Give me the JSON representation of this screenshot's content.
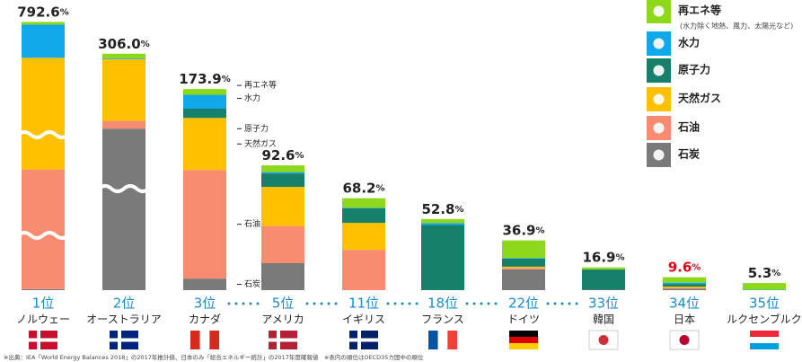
{
  "chart_data": {
    "type": "bar",
    "stacked": true,
    "unit": "%",
    "categories": [
      "ノルウェー",
      "オーストラリア",
      "カナダ",
      "アメリカ",
      "イギリス",
      "フランス",
      "ドイツ",
      "韓国",
      "日本",
      "ルクセンブルク"
    ],
    "ranks": [
      "1位",
      "2位",
      "3位",
      "5位",
      "11位",
      "18位",
      "22位",
      "33位",
      "34位",
      "35位"
    ],
    "totals": [
      792.6,
      306.0,
      173.9,
      92.6,
      68.2,
      52.8,
      36.9,
      16.9,
      9.6,
      5.3
    ],
    "total_labels": [
      "792.6",
      "306.0",
      "173.9",
      "92.6",
      "68.2",
      "52.8",
      "36.9",
      "16.9",
      "9.6",
      "5.3"
    ],
    "label_colors": [
      "#222222",
      "#222222",
      "#222222",
      "#222222",
      "#222222",
      "#222222",
      "#222222",
      "#222222",
      "#e60012",
      "#222222"
    ],
    "rank_colors": [
      "#1a8ccd",
      "#1a8ccd",
      "#1a8ccd",
      "#1a8ccd",
      "#1a8ccd",
      "#1a8ccd",
      "#1a8ccd",
      "#1a8ccd",
      "#e60012",
      "#1a8ccd"
    ],
    "series": [
      {
        "name": "再エネ等",
        "color": "#8ed81c",
        "values": [
          8,
          6,
          5,
          5,
          7,
          3,
          13,
          1.5,
          4,
          5
        ]
      },
      {
        "name": "水力",
        "color": "#10a8e8",
        "values": [
          98,
          1,
          12,
          1,
          0.3,
          1.5,
          0.5,
          0.1,
          1,
          0.3
        ]
      },
      {
        "name": "原子力",
        "color": "#17806a",
        "values": [
          0,
          0,
          8,
          10,
          11,
          48.3,
          6,
          15,
          2,
          0
        ]
      },
      {
        "name": "天然ガス",
        "color": "#ffc000",
        "values": [
          330,
          80,
          45,
          29,
          20,
          0,
          1,
          0,
          1,
          0
        ]
      },
      {
        "name": "石油",
        "color": "#f98c70",
        "values": [
          353.6,
          10,
          93.9,
          27.6,
          29.9,
          0,
          1,
          0,
          0.5,
          0
        ]
      },
      {
        "name": "石炭",
        "color": "#7a7a7a",
        "values": [
          3,
          209,
          10,
          20,
          0,
          0,
          15.4,
          0.3,
          1.1,
          0
        ]
      }
    ],
    "legend_note": "(水力除く地熱、風力、太陽光など)",
    "annotations": [
      "再エネ等",
      "水力",
      "原子力",
      "天然ガス",
      "石油",
      "石炭"
    ],
    "footnote": "※出典：IEA「World Energy Balances 2018」の2017年推計値、日本のみ「総合エネルギー統計」の2017年度確報値　※表内の順位はOECD35カ国中の順位"
  }
}
